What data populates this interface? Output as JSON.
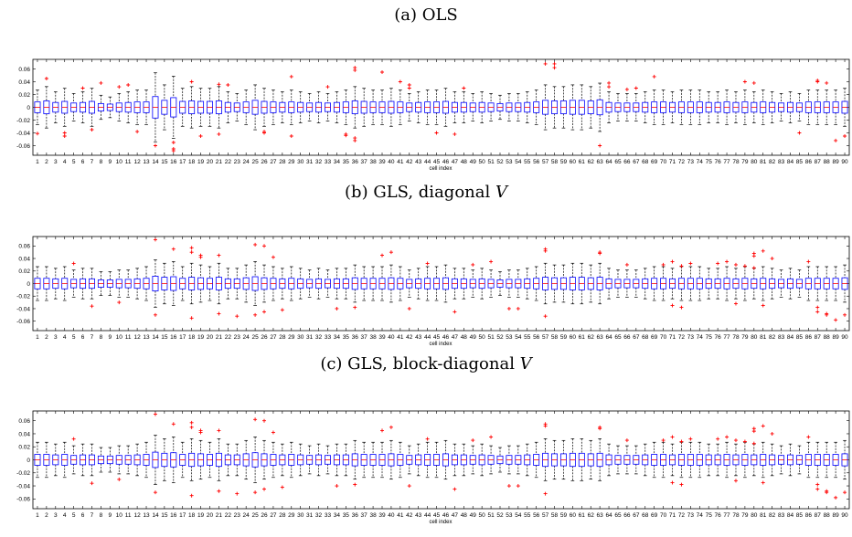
{
  "chart_data": [
    {
      "type": "box",
      "title": "(a) OLS",
      "title_parts": [
        "(a) OLS"
      ],
      "xlabel": "cell index",
      "ylim": [
        -0.075,
        0.075
      ],
      "yticks": [
        "0.06",
        "0.04",
        "0.02",
        "0",
        "-0.02",
        "-0.04",
        "-0.06"
      ],
      "box_color": "#0000ff",
      "median_color": "#ff0000",
      "outlier_color": "#ff0000",
      "categories": [
        "1",
        "2",
        "3",
        "4",
        "5",
        "6",
        "7",
        "8",
        "9",
        "10",
        "11",
        "12",
        "13",
        "14",
        "15",
        "16",
        "17",
        "18",
        "19",
        "20",
        "21",
        "22",
        "23",
        "24",
        "25",
        "26",
        "27",
        "28",
        "29",
        "30",
        "31",
        "32",
        "33",
        "34",
        "35",
        "36",
        "37",
        "38",
        "39",
        "40",
        "41",
        "42",
        "43",
        "44",
        "45",
        "46",
        "47",
        "48",
        "49",
        "50",
        "51",
        "52",
        "53",
        "54",
        "55",
        "56",
        "57",
        "58",
        "59",
        "60",
        "61",
        "62",
        "63",
        "64",
        "65",
        "66",
        "67",
        "68",
        "69",
        "70",
        "71",
        "72",
        "73",
        "74",
        "75",
        "76",
        "77",
        "78",
        "79",
        "80",
        "81",
        "82",
        "83",
        "84",
        "85",
        "86",
        "87",
        "88",
        "89",
        "90"
      ],
      "spread": [
        0.02,
        0.024,
        0.018,
        0.022,
        0.016,
        0.018,
        0.022,
        0.014,
        0.012,
        0.016,
        0.018,
        0.02,
        0.02,
        0.04,
        0.026,
        0.036,
        0.022,
        0.024,
        0.022,
        0.022,
        0.024,
        0.018,
        0.016,
        0.02,
        0.026,
        0.022,
        0.02,
        0.018,
        0.02,
        0.018,
        0.016,
        0.018,
        0.016,
        0.018,
        0.02,
        0.024,
        0.022,
        0.02,
        0.02,
        0.022,
        0.02,
        0.016,
        0.018,
        0.02,
        0.02,
        0.022,
        0.018,
        0.018,
        0.016,
        0.018,
        0.016,
        0.014,
        0.016,
        0.016,
        0.018,
        0.02,
        0.026,
        0.024,
        0.024,
        0.026,
        0.026,
        0.024,
        0.028,
        0.018,
        0.016,
        0.016,
        0.016,
        0.018,
        0.02,
        0.02,
        0.018,
        0.02,
        0.02,
        0.02,
        0.018,
        0.018,
        0.02,
        0.018,
        0.02,
        0.018,
        0.02,
        0.018,
        0.016,
        0.018,
        0.016,
        0.02,
        0.02,
        0.02,
        0.02,
        0.022
      ],
      "outliers": [
        [
          1,
          -0.041
        ],
        [
          2,
          0.045
        ],
        [
          4,
          -0.045
        ],
        [
          4,
          -0.04
        ],
        [
          6,
          0.03
        ],
        [
          7,
          -0.035
        ],
        [
          8,
          0.038
        ],
        [
          10,
          0.032
        ],
        [
          11,
          0.035
        ],
        [
          12,
          -0.038
        ],
        [
          14,
          -0.06
        ],
        [
          16,
          -0.065
        ],
        [
          16,
          -0.068
        ],
        [
          16,
          -0.055
        ],
        [
          18,
          0.04
        ],
        [
          19,
          -0.045
        ],
        [
          21,
          0.036
        ],
        [
          21,
          -0.042
        ],
        [
          22,
          0.035
        ],
        [
          26,
          -0.038
        ],
        [
          26,
          -0.04
        ],
        [
          29,
          0.048
        ],
        [
          29,
          -0.045
        ],
        [
          33,
          0.032
        ],
        [
          35,
          -0.042
        ],
        [
          35,
          -0.044
        ],
        [
          36,
          0.058
        ],
        [
          36,
          0.062
        ],
        [
          36,
          -0.048
        ],
        [
          36,
          -0.052
        ],
        [
          39,
          0.055
        ],
        [
          41,
          0.04
        ],
        [
          42,
          0.035
        ],
        [
          42,
          0.03
        ],
        [
          45,
          -0.04
        ],
        [
          47,
          -0.042
        ],
        [
          48,
          0.03
        ],
        [
          57,
          0.068
        ],
        [
          58,
          0.068
        ],
        [
          58,
          0.062
        ],
        [
          63,
          -0.06
        ],
        [
          64,
          0.038
        ],
        [
          64,
          0.032
        ],
        [
          66,
          0.028
        ],
        [
          67,
          0.03
        ],
        [
          69,
          0.048
        ],
        [
          79,
          0.04
        ],
        [
          80,
          0.038
        ],
        [
          85,
          -0.04
        ],
        [
          87,
          0.042
        ],
        [
          87,
          0.04
        ],
        [
          88,
          0.038
        ],
        [
          89,
          -0.052
        ],
        [
          90,
          -0.045
        ]
      ]
    },
    {
      "type": "box",
      "title": "(b) GLS, diagonal V",
      "title_parts": [
        "(b) GLS, diagonal ",
        "V"
      ],
      "xlabel": "cell index",
      "ylim": [
        -0.075,
        0.075
      ],
      "yticks": [
        "0.06",
        "0.04",
        "0.02",
        "0",
        "-0.02",
        "-0.04",
        "-0.06"
      ],
      "box_color": "#0000ff",
      "median_color": "#ff0000",
      "outlier_color": "#ff0000",
      "categories": [
        "1",
        "2",
        "3",
        "4",
        "5",
        "6",
        "7",
        "8",
        "9",
        "10",
        "11",
        "12",
        "13",
        "14",
        "15",
        "16",
        "17",
        "18",
        "19",
        "20",
        "21",
        "22",
        "23",
        "24",
        "25",
        "26",
        "27",
        "28",
        "29",
        "30",
        "31",
        "32",
        "33",
        "34",
        "35",
        "36",
        "37",
        "38",
        "39",
        "40",
        "41",
        "42",
        "43",
        "44",
        "45",
        "46",
        "47",
        "48",
        "49",
        "50",
        "51",
        "52",
        "53",
        "54",
        "55",
        "56",
        "57",
        "58",
        "59",
        "60",
        "61",
        "62",
        "63",
        "64",
        "65",
        "66",
        "67",
        "68",
        "69",
        "70",
        "71",
        "72",
        "73",
        "74",
        "75",
        "76",
        "77",
        "78",
        "79",
        "80",
        "81",
        "82",
        "83",
        "84",
        "85",
        "86",
        "87",
        "88",
        "89",
        "90"
      ],
      "spread": [
        0.02,
        0.02,
        0.018,
        0.02,
        0.016,
        0.018,
        0.018,
        0.014,
        0.014,
        0.016,
        0.016,
        0.018,
        0.02,
        0.028,
        0.024,
        0.026,
        0.02,
        0.024,
        0.022,
        0.02,
        0.024,
        0.018,
        0.018,
        0.022,
        0.026,
        0.022,
        0.02,
        0.018,
        0.02,
        0.018,
        0.016,
        0.018,
        0.016,
        0.018,
        0.018,
        0.022,
        0.02,
        0.02,
        0.02,
        0.022,
        0.02,
        0.016,
        0.018,
        0.02,
        0.02,
        0.022,
        0.018,
        0.018,
        0.016,
        0.018,
        0.016,
        0.014,
        0.016,
        0.016,
        0.018,
        0.02,
        0.024,
        0.022,
        0.022,
        0.024,
        0.024,
        0.022,
        0.024,
        0.018,
        0.016,
        0.016,
        0.016,
        0.018,
        0.02,
        0.02,
        0.018,
        0.02,
        0.02,
        0.02,
        0.018,
        0.018,
        0.02,
        0.018,
        0.02,
        0.018,
        0.02,
        0.018,
        0.016,
        0.018,
        0.016,
        0.02,
        0.02,
        0.02,
        0.02,
        0.022
      ],
      "outliers": [
        [
          5,
          0.032
        ],
        [
          7,
          -0.036
        ],
        [
          10,
          -0.03
        ],
        [
          14,
          0.07
        ],
        [
          14,
          -0.05
        ],
        [
          16,
          0.055
        ],
        [
          18,
          0.057
        ],
        [
          18,
          0.05
        ],
        [
          18,
          -0.055
        ],
        [
          19,
          0.045
        ],
        [
          19,
          0.042
        ],
        [
          21,
          0.045
        ],
        [
          21,
          -0.048
        ],
        [
          23,
          -0.052
        ],
        [
          25,
          0.062
        ],
        [
          25,
          -0.05
        ],
        [
          26,
          0.06
        ],
        [
          26,
          -0.045
        ],
        [
          27,
          0.042
        ],
        [
          28,
          -0.042
        ],
        [
          34,
          -0.04
        ],
        [
          36,
          -0.038
        ],
        [
          39,
          0.045
        ],
        [
          40,
          0.05
        ],
        [
          42,
          -0.04
        ],
        [
          44,
          0.032
        ],
        [
          47,
          -0.045
        ],
        [
          49,
          0.03
        ],
        [
          51,
          0.035
        ],
        [
          53,
          -0.04
        ],
        [
          54,
          -0.04
        ],
        [
          57,
          0.055
        ],
        [
          57,
          0.052
        ],
        [
          57,
          -0.052
        ],
        [
          63,
          0.05
        ],
        [
          63,
          0.048
        ],
        [
          66,
          0.03
        ],
        [
          70,
          0.03
        ],
        [
          71,
          0.035
        ],
        [
          71,
          -0.035
        ],
        [
          72,
          0.028
        ],
        [
          72,
          -0.038
        ],
        [
          73,
          0.032
        ],
        [
          76,
          0.032
        ],
        [
          77,
          0.035
        ],
        [
          78,
          0.03
        ],
        [
          78,
          -0.032
        ],
        [
          79,
          0.028
        ],
        [
          80,
          0.025
        ],
        [
          80,
          0.048
        ],
        [
          80,
          0.044
        ],
        [
          81,
          0.052
        ],
        [
          81,
          -0.035
        ],
        [
          82,
          0.04
        ],
        [
          86,
          0.035
        ],
        [
          87,
          -0.038
        ],
        [
          87,
          -0.045
        ],
        [
          88,
          -0.048
        ],
        [
          88,
          -0.05
        ],
        [
          89,
          -0.058
        ],
        [
          90,
          -0.05
        ]
      ]
    },
    {
      "type": "box",
      "title": "(c) GLS, block-diagonal V",
      "title_parts": [
        "(c) GLS, block-diagonal ",
        "V"
      ],
      "xlabel": "cell index",
      "ylim": [
        -0.075,
        0.075
      ],
      "yticks": [
        "0.06",
        "0.04",
        "0.02",
        "0",
        "-0.02",
        "-0.04",
        "-0.06"
      ],
      "box_color": "#0000ff",
      "median_color": "#ff0000",
      "outlier_color": "#ff0000",
      "categories": [
        "1",
        "2",
        "3",
        "4",
        "5",
        "6",
        "7",
        "8",
        "9",
        "10",
        "11",
        "12",
        "13",
        "14",
        "15",
        "16",
        "17",
        "18",
        "19",
        "20",
        "21",
        "22",
        "23",
        "24",
        "25",
        "26",
        "27",
        "28",
        "29",
        "30",
        "31",
        "32",
        "33",
        "34",
        "35",
        "36",
        "37",
        "38",
        "39",
        "40",
        "41",
        "42",
        "43",
        "44",
        "45",
        "46",
        "47",
        "48",
        "49",
        "50",
        "51",
        "52",
        "53",
        "54",
        "55",
        "56",
        "57",
        "58",
        "59",
        "60",
        "61",
        "62",
        "63",
        "64",
        "65",
        "66",
        "67",
        "68",
        "69",
        "70",
        "71",
        "72",
        "73",
        "74",
        "75",
        "76",
        "77",
        "78",
        "79",
        "80",
        "81",
        "82",
        "83",
        "84",
        "85",
        "86",
        "87",
        "88",
        "89",
        "90"
      ],
      "spread": [
        0.02,
        0.02,
        0.018,
        0.02,
        0.016,
        0.018,
        0.018,
        0.014,
        0.014,
        0.016,
        0.016,
        0.018,
        0.02,
        0.028,
        0.024,
        0.026,
        0.02,
        0.024,
        0.022,
        0.02,
        0.024,
        0.018,
        0.018,
        0.022,
        0.026,
        0.022,
        0.02,
        0.018,
        0.02,
        0.018,
        0.016,
        0.018,
        0.016,
        0.018,
        0.018,
        0.022,
        0.02,
        0.02,
        0.02,
        0.022,
        0.02,
        0.016,
        0.018,
        0.02,
        0.02,
        0.022,
        0.018,
        0.018,
        0.016,
        0.018,
        0.016,
        0.014,
        0.016,
        0.016,
        0.018,
        0.02,
        0.024,
        0.022,
        0.022,
        0.024,
        0.024,
        0.022,
        0.024,
        0.018,
        0.016,
        0.016,
        0.016,
        0.018,
        0.02,
        0.02,
        0.018,
        0.02,
        0.02,
        0.02,
        0.018,
        0.018,
        0.02,
        0.018,
        0.02,
        0.018,
        0.02,
        0.018,
        0.016,
        0.018,
        0.016,
        0.02,
        0.02,
        0.02,
        0.02,
        0.022
      ],
      "outliers": [
        [
          5,
          0.032
        ],
        [
          7,
          -0.036
        ],
        [
          10,
          -0.03
        ],
        [
          14,
          0.07
        ],
        [
          14,
          -0.05
        ],
        [
          16,
          0.055
        ],
        [
          18,
          0.057
        ],
        [
          18,
          0.05
        ],
        [
          18,
          -0.055
        ],
        [
          19,
          0.045
        ],
        [
          19,
          0.042
        ],
        [
          21,
          0.045
        ],
        [
          21,
          -0.048
        ],
        [
          23,
          -0.052
        ],
        [
          25,
          0.062
        ],
        [
          25,
          -0.05
        ],
        [
          26,
          0.06
        ],
        [
          26,
          -0.045
        ],
        [
          27,
          0.042
        ],
        [
          28,
          -0.042
        ],
        [
          34,
          -0.04
        ],
        [
          36,
          -0.038
        ],
        [
          39,
          0.045
        ],
        [
          40,
          0.05
        ],
        [
          42,
          -0.04
        ],
        [
          44,
          0.032
        ],
        [
          47,
          -0.045
        ],
        [
          49,
          0.03
        ],
        [
          51,
          0.035
        ],
        [
          53,
          -0.04
        ],
        [
          54,
          -0.04
        ],
        [
          57,
          0.055
        ],
        [
          57,
          0.052
        ],
        [
          57,
          -0.052
        ],
        [
          63,
          0.05
        ],
        [
          63,
          0.048
        ],
        [
          66,
          0.03
        ],
        [
          70,
          0.03
        ],
        [
          71,
          0.035
        ],
        [
          71,
          -0.035
        ],
        [
          72,
          0.028
        ],
        [
          72,
          -0.038
        ],
        [
          73,
          0.032
        ],
        [
          76,
          0.032
        ],
        [
          77,
          0.035
        ],
        [
          78,
          0.03
        ],
        [
          78,
          -0.032
        ],
        [
          79,
          0.028
        ],
        [
          80,
          0.025
        ],
        [
          80,
          0.048
        ],
        [
          80,
          0.044
        ],
        [
          81,
          0.052
        ],
        [
          81,
          -0.035
        ],
        [
          82,
          0.04
        ],
        [
          86,
          0.035
        ],
        [
          87,
          -0.038
        ],
        [
          87,
          -0.045
        ],
        [
          88,
          -0.048
        ],
        [
          88,
          -0.05
        ],
        [
          89,
          -0.058
        ],
        [
          90,
          -0.05
        ]
      ]
    }
  ]
}
